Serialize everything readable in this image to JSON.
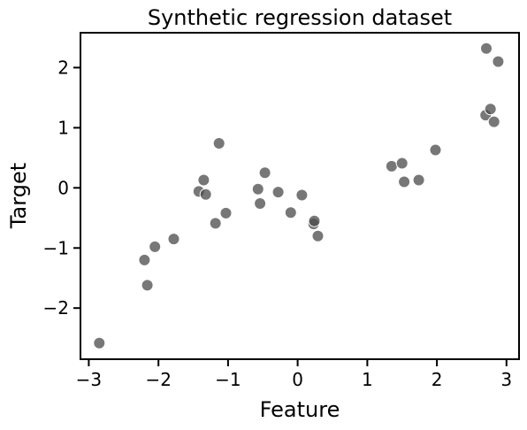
{
  "chart_data": {
    "type": "scatter",
    "title": "Synthetic regression dataset",
    "xlabel": "Feature",
    "ylabel": "Target",
    "xlim": [
      -3.12,
      3.18
    ],
    "ylim": [
      -2.85,
      2.58
    ],
    "xticks": [
      -3,
      -2,
      -1,
      0,
      1,
      2,
      3
    ],
    "yticks": [
      -2,
      -1,
      0,
      1,
      2
    ],
    "xtick_labels": [
      "−3",
      "−2",
      "−1",
      "0",
      "1",
      "2",
      "3"
    ],
    "ytick_labels": [
      "−2",
      "−1",
      "0",
      "1",
      "2"
    ],
    "grid": false,
    "legend": "none",
    "colors": {
      "point": "#4a4a4a",
      "axis": "#000000"
    },
    "points": [
      {
        "x": -2.85,
        "y": -2.58
      },
      {
        "x": -2.2,
        "y": -1.2
      },
      {
        "x": -2.16,
        "y": -1.62
      },
      {
        "x": -2.05,
        "y": -0.98
      },
      {
        "x": -1.78,
        "y": -0.85
      },
      {
        "x": -1.42,
        "y": -0.06
      },
      {
        "x": -1.35,
        "y": 0.13
      },
      {
        "x": -1.32,
        "y": -0.11
      },
      {
        "x": -1.18,
        "y": -0.59
      },
      {
        "x": -1.13,
        "y": 0.74
      },
      {
        "x": -1.03,
        "y": -0.42
      },
      {
        "x": -0.57,
        "y": -0.02
      },
      {
        "x": -0.54,
        "y": -0.26
      },
      {
        "x": -0.47,
        "y": 0.25
      },
      {
        "x": -0.28,
        "y": -0.07
      },
      {
        "x": -0.1,
        "y": -0.41
      },
      {
        "x": 0.06,
        "y": -0.12
      },
      {
        "x": 0.23,
        "y": -0.6
      },
      {
        "x": 0.24,
        "y": -0.55
      },
      {
        "x": 0.29,
        "y": -0.8
      },
      {
        "x": 1.35,
        "y": 0.36
      },
      {
        "x": 1.5,
        "y": 0.41
      },
      {
        "x": 1.53,
        "y": 0.1
      },
      {
        "x": 1.74,
        "y": 0.13
      },
      {
        "x": 1.98,
        "y": 0.63
      },
      {
        "x": 2.7,
        "y": 1.21
      },
      {
        "x": 2.71,
        "y": 2.32
      },
      {
        "x": 2.77,
        "y": 1.31
      },
      {
        "x": 2.82,
        "y": 1.1
      },
      {
        "x": 2.88,
        "y": 2.1
      }
    ]
  }
}
